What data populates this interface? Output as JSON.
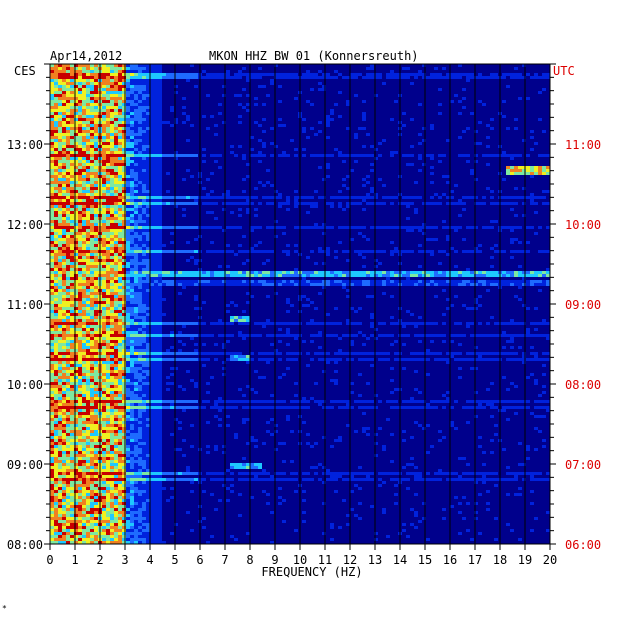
{
  "header": {
    "date": "Apr14,2012",
    "station": "MKON HHZ BW 01 (Konnersreuth)",
    "left_zone": "CES",
    "right_zone": "UTC"
  },
  "footer": {
    "mark": "*"
  },
  "colors": {
    "background": "#00008c",
    "right_axis": "#dd0000",
    "grid": "#000000",
    "colormap": [
      "#00008c",
      "#0022dd",
      "#1e6bff",
      "#1ec8ff",
      "#7ee8a0",
      "#f0f020",
      "#f08020",
      "#c80000"
    ]
  },
  "chart_data": {
    "type": "heatmap",
    "xlabel": "FREQUENCY (HZ)",
    "x_ticks": [
      "0",
      "1",
      "2",
      "3",
      "4",
      "5",
      "6",
      "7",
      "8",
      "9",
      "10",
      "11",
      "12",
      "13",
      "14",
      "15",
      "16",
      "17",
      "18",
      "19",
      "20"
    ],
    "xlim": [
      0,
      20
    ],
    "ylim_local_hours": [
      8,
      14
    ],
    "left_ticks": [
      "08:00",
      "09:00",
      "10:00",
      "11:00",
      "12:00",
      "13:00"
    ],
    "right_ticks": [
      "06:00",
      "07:00",
      "08:00",
      "09:00",
      "10:00",
      "11:00"
    ],
    "features": [
      {
        "desc": "broadband noise energy",
        "freq_range": [
          0,
          3
        ],
        "time_range": [
          8.0,
          14.0
        ],
        "level": "high"
      },
      {
        "desc": "narrow band signal",
        "freq_range": [
          18.3,
          20
        ],
        "time": 12.67,
        "level": "high"
      },
      {
        "desc": "horizontal band",
        "freq_range": [
          0,
          20
        ],
        "time": 11.38,
        "level": "medium"
      },
      {
        "desc": "horizontal band",
        "freq_range": [
          0,
          20
        ],
        "time": 11.25,
        "level": "low"
      },
      {
        "desc": "spot",
        "freq_range": [
          7.2,
          8.4
        ],
        "time": 8.97,
        "level": "medium"
      },
      {
        "desc": "spot",
        "freq_range": [
          7.2,
          8.0
        ],
        "time": 10.33,
        "level": "medium"
      },
      {
        "desc": "spot",
        "freq_range": [
          7.2,
          8.0
        ],
        "time": 10.82,
        "level": "medium"
      }
    ]
  }
}
